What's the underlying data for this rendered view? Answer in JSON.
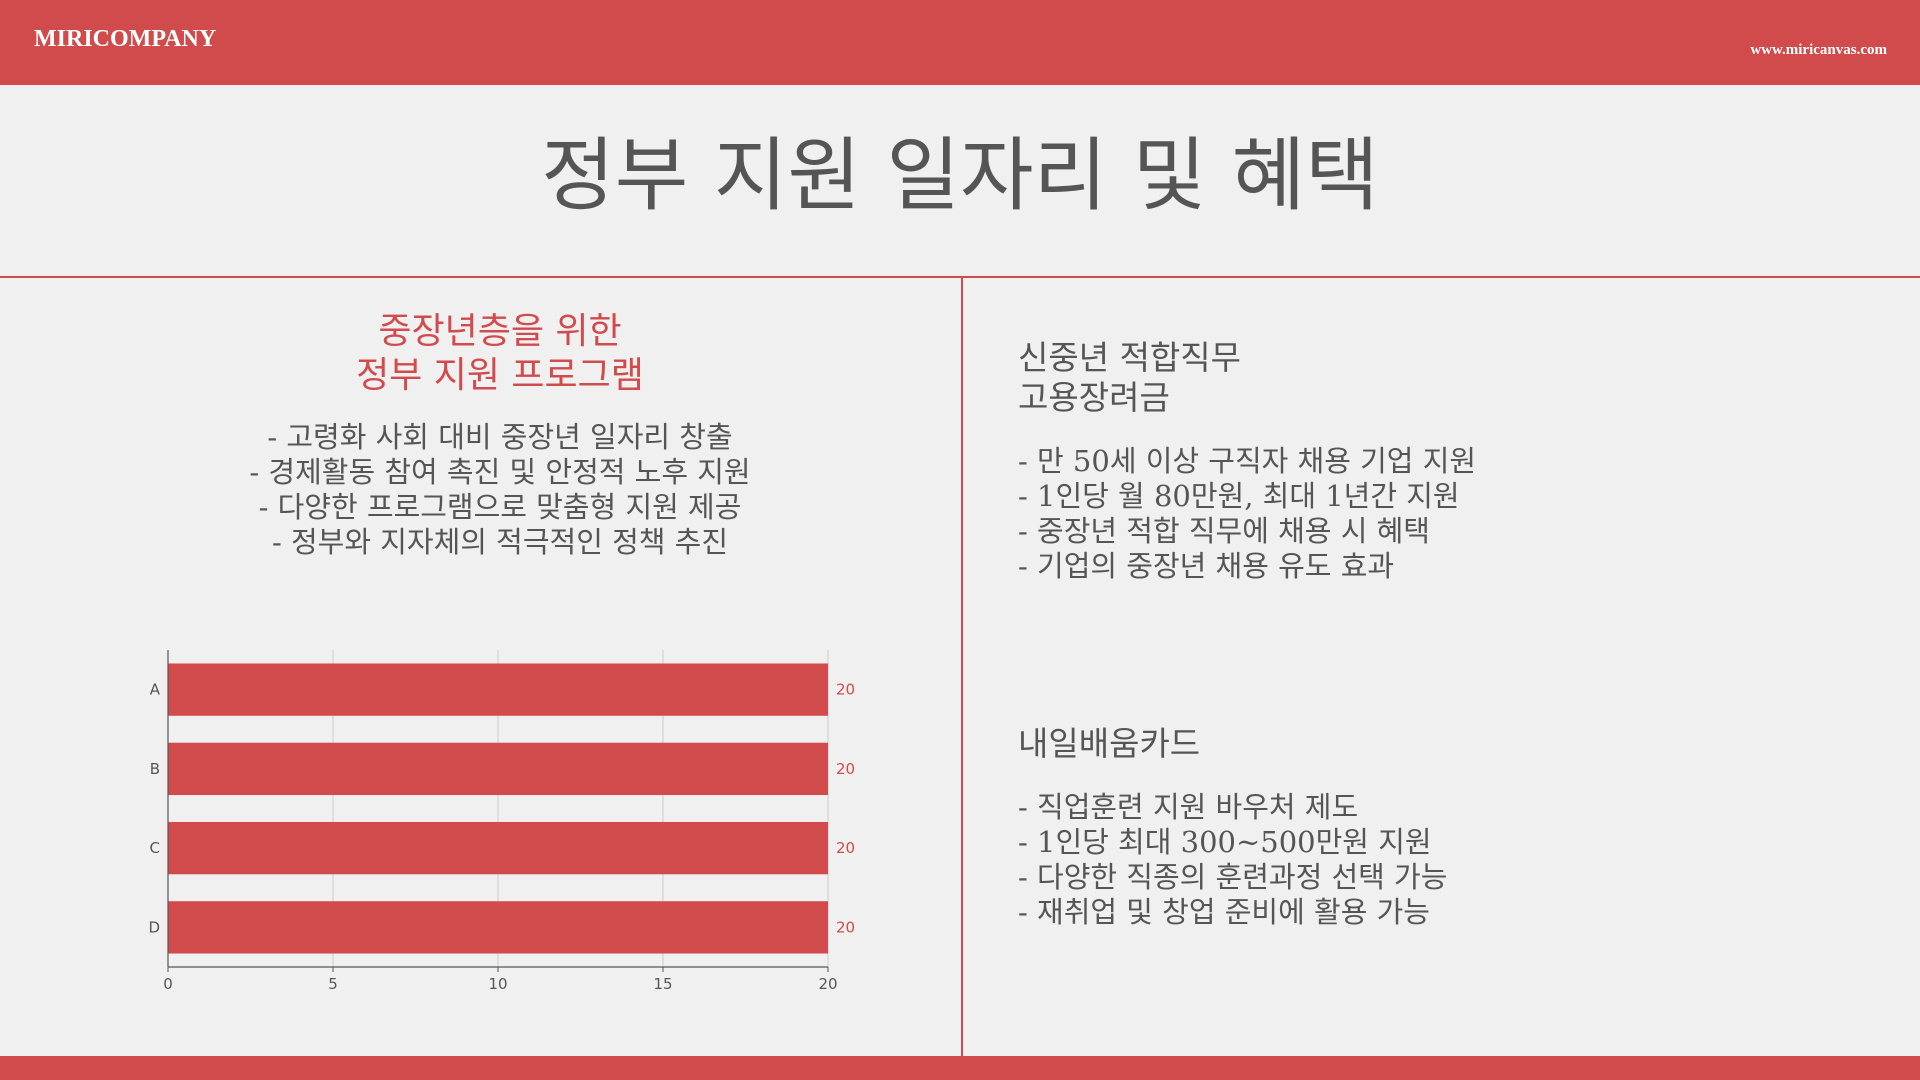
{
  "header": {
    "brand": "MIRICOMPANY",
    "website": "www.miricanvas.com"
  },
  "title": "정부 지원 일자리 및 혜택",
  "left": {
    "heading_lines": [
      "중장년층을 위한",
      "정부 지원 프로그램"
    ],
    "bullets": [
      "- 고령화 사회 대비 중장년 일자리 창출",
      "- 경제활동 참여 촉진 및 안정적 노후 지원",
      "- 다양한 프로그램으로 맞춤형 지원 제공",
      "- 정부와 지자체의 적극적인 정책 추진"
    ]
  },
  "right": {
    "section1": {
      "heading_lines": [
        "신중년 적합직무",
        "고용장려금"
      ],
      "bullets": [
        "- 만 50세 이상 구직자 채용 기업 지원",
        "- 1인당 월 80만원, 최대 1년간 지원",
        "- 중장년 적합 직무에 채용 시 혜택",
        "- 기업의 중장년 채용 유도 효과"
      ]
    },
    "section2": {
      "heading_lines": [
        "내일배움카드"
      ],
      "bullets": [
        "- 직업훈련 지원 바우처 제도",
        "- 1인당 최대 300~500만원 지원",
        "- 다양한 직종의 훈련과정 선택 가능",
        "- 재취업 및 창업 준비에 활용 가능"
      ]
    }
  },
  "colors": {
    "accent": "#d14b4c",
    "text": "#555555",
    "background": "#f0f0f0"
  },
  "chart_data": {
    "type": "bar",
    "orientation": "horizontal",
    "categories": [
      "A",
      "B",
      "C",
      "D"
    ],
    "values": [
      20,
      20,
      20,
      20
    ],
    "xlim": [
      0,
      20
    ],
    "xticks": [
      0,
      5,
      10,
      15,
      20
    ],
    "grid": true,
    "data_labels": true,
    "color": "#d14b4c"
  }
}
